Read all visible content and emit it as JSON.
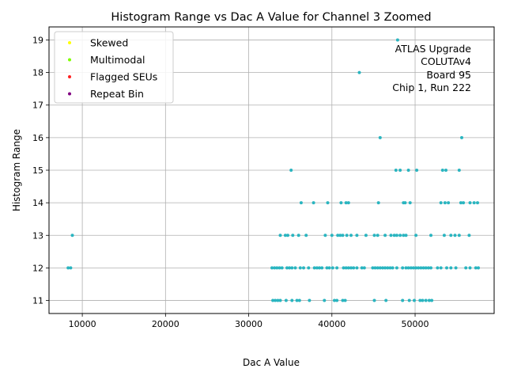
{
  "chart_data": {
    "type": "scatter",
    "title": "Histogram Range vs Dac A Value for Channel 3 Zoomed",
    "xlabel": "Dac A Value",
    "ylabel": "Histogram Range",
    "xlim": [
      6000,
      59500
    ],
    "ylim": [
      10.6,
      19.4
    ],
    "xticks": [
      10000,
      20000,
      30000,
      40000,
      50000
    ],
    "yticks": [
      11,
      12,
      13,
      14,
      15,
      16,
      17,
      18,
      19
    ],
    "grid": true,
    "legend_position": "top-left",
    "legend": [
      {
        "label": "Skewed",
        "color": "#ffff00"
      },
      {
        "label": "Multimodal",
        "color": "#7fff00"
      },
      {
        "label": "Flagged SEUs",
        "color": "#ff2020"
      },
      {
        "label": "Repeat Bin",
        "color": "#800080"
      }
    ],
    "annotation": [
      "ATLAS Upgrade",
      "COLUTAv4",
      "Board 95",
      "Chip 1, Run 222"
    ],
    "series": [
      {
        "name": "Channel 3",
        "color": "#2ab5c0",
        "points": [
          [
            47900,
            19
          ],
          [
            43300,
            18
          ],
          [
            45800,
            16
          ],
          [
            55600,
            16
          ],
          [
            35100,
            15
          ],
          [
            47700,
            15
          ],
          [
            48200,
            15
          ],
          [
            49200,
            15
          ],
          [
            50200,
            15
          ],
          [
            53300,
            15
          ],
          [
            53700,
            15
          ],
          [
            55300,
            15
          ],
          [
            36300,
            14
          ],
          [
            37800,
            14
          ],
          [
            39500,
            14
          ],
          [
            41100,
            14
          ],
          [
            41700,
            14
          ],
          [
            42000,
            14
          ],
          [
            45600,
            14
          ],
          [
            48600,
            14
          ],
          [
            48800,
            14
          ],
          [
            49400,
            14
          ],
          [
            53100,
            14
          ],
          [
            53600,
            14
          ],
          [
            54000,
            14
          ],
          [
            55500,
            14
          ],
          [
            55800,
            14
          ],
          [
            56600,
            14
          ],
          [
            57100,
            14
          ],
          [
            57500,
            14
          ],
          [
            8800,
            13
          ],
          [
            33800,
            13
          ],
          [
            34400,
            13
          ],
          [
            34700,
            13
          ],
          [
            35300,
            13
          ],
          [
            36000,
            13
          ],
          [
            36900,
            13
          ],
          [
            39200,
            13
          ],
          [
            40000,
            13
          ],
          [
            40700,
            13
          ],
          [
            41000,
            13
          ],
          [
            41300,
            13
          ],
          [
            41800,
            13
          ],
          [
            42300,
            13
          ],
          [
            43000,
            13
          ],
          [
            44100,
            13
          ],
          [
            45100,
            13
          ],
          [
            45500,
            13
          ],
          [
            46400,
            13
          ],
          [
            47100,
            13
          ],
          [
            47500,
            13
          ],
          [
            47800,
            13
          ],
          [
            48200,
            13
          ],
          [
            48600,
            13
          ],
          [
            48900,
            13
          ],
          [
            50100,
            13
          ],
          [
            51900,
            13
          ],
          [
            53500,
            13
          ],
          [
            54300,
            13
          ],
          [
            54800,
            13
          ],
          [
            55300,
            13
          ],
          [
            56500,
            13
          ],
          [
            8300,
            12
          ],
          [
            8600,
            12
          ],
          [
            32800,
            12
          ],
          [
            33100,
            12
          ],
          [
            33400,
            12
          ],
          [
            33700,
            12
          ],
          [
            34000,
            12
          ],
          [
            34600,
            12
          ],
          [
            34900,
            12
          ],
          [
            35200,
            12
          ],
          [
            35600,
            12
          ],
          [
            36200,
            12
          ],
          [
            36600,
            12
          ],
          [
            37200,
            12
          ],
          [
            37900,
            12
          ],
          [
            38200,
            12
          ],
          [
            38500,
            12
          ],
          [
            38800,
            12
          ],
          [
            39400,
            12
          ],
          [
            39700,
            12
          ],
          [
            40100,
            12
          ],
          [
            40600,
            12
          ],
          [
            41400,
            12
          ],
          [
            41700,
            12
          ],
          [
            42000,
            12
          ],
          [
            42300,
            12
          ],
          [
            42600,
            12
          ],
          [
            43000,
            12
          ],
          [
            43600,
            12
          ],
          [
            43900,
            12
          ],
          [
            44900,
            12
          ],
          [
            45200,
            12
          ],
          [
            45500,
            12
          ],
          [
            45800,
            12
          ],
          [
            46100,
            12
          ],
          [
            46400,
            12
          ],
          [
            46700,
            12
          ],
          [
            47000,
            12
          ],
          [
            47300,
            12
          ],
          [
            47800,
            12
          ],
          [
            48500,
            12
          ],
          [
            48900,
            12
          ],
          [
            49200,
            12
          ],
          [
            49500,
            12
          ],
          [
            49800,
            12
          ],
          [
            50100,
            12
          ],
          [
            50400,
            12
          ],
          [
            50700,
            12
          ],
          [
            51000,
            12
          ],
          [
            51300,
            12
          ],
          [
            51600,
            12
          ],
          [
            51900,
            12
          ],
          [
            52700,
            12
          ],
          [
            53100,
            12
          ],
          [
            53800,
            12
          ],
          [
            54300,
            12
          ],
          [
            54900,
            12
          ],
          [
            56100,
            12
          ],
          [
            56600,
            12
          ],
          [
            57300,
            12
          ],
          [
            57600,
            12
          ],
          [
            32900,
            11
          ],
          [
            33200,
            11
          ],
          [
            33500,
            11
          ],
          [
            33800,
            11
          ],
          [
            34500,
            11
          ],
          [
            35200,
            11
          ],
          [
            35800,
            11
          ],
          [
            36100,
            11
          ],
          [
            37300,
            11
          ],
          [
            39100,
            11
          ],
          [
            40300,
            11
          ],
          [
            40600,
            11
          ],
          [
            41300,
            11
          ],
          [
            41600,
            11
          ],
          [
            45100,
            11
          ],
          [
            46500,
            11
          ],
          [
            48500,
            11
          ],
          [
            49300,
            11
          ],
          [
            49900,
            11
          ],
          [
            50600,
            11
          ],
          [
            50900,
            11
          ],
          [
            51300,
            11
          ],
          [
            51700,
            11
          ],
          [
            52000,
            11
          ]
        ]
      }
    ]
  }
}
